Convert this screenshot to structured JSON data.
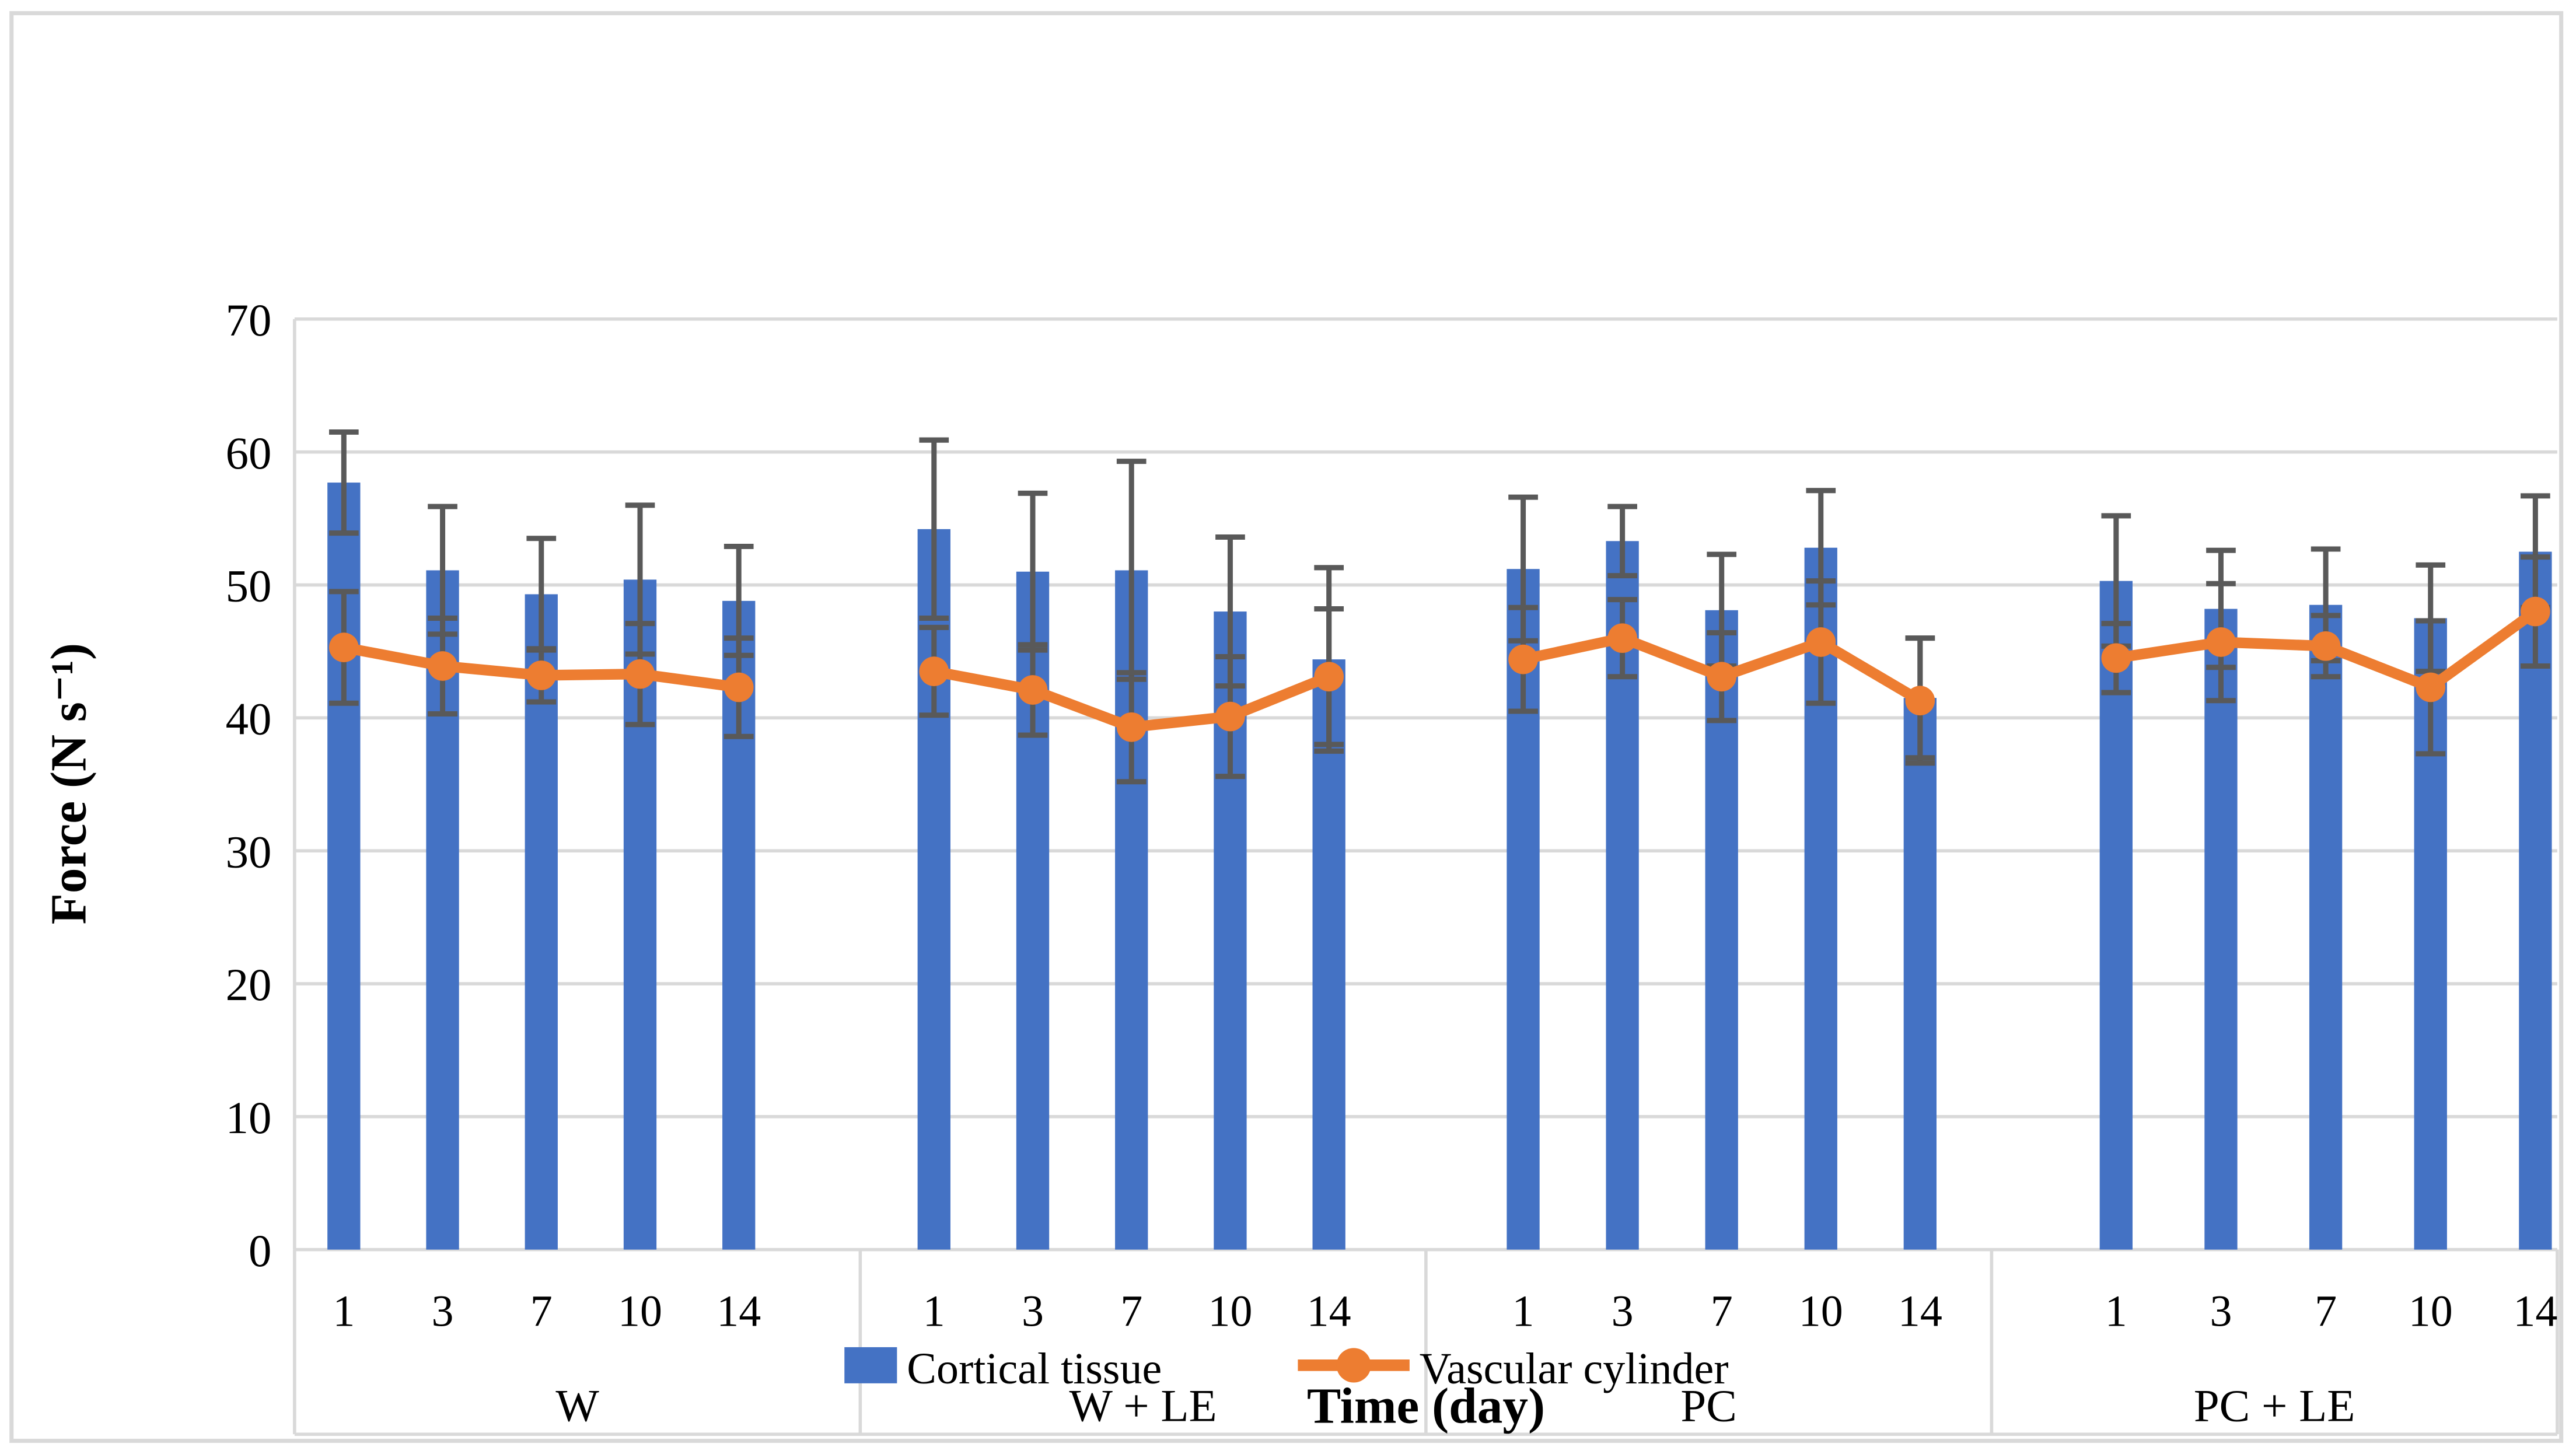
{
  "figure": {
    "background": "#FFFFFF",
    "border_color": "#D9D9D9"
  },
  "chart_data": {
    "type": "bar",
    "subtype": "grouped bars with overlaid line series and error bars",
    "title": "",
    "xlabel": "Time (day)",
    "ylabel": "Force (N s⁻¹)",
    "ylim": [
      0,
      70
    ],
    "yticks": [
      0,
      10,
      20,
      30,
      40,
      50,
      60,
      70
    ],
    "grid": "horizontal",
    "legend_position": "bottom-center",
    "days": [
      "1",
      "3",
      "7",
      "10",
      "14"
    ],
    "legend": [
      {
        "label": "Cortical tissue",
        "type": "bar",
        "color": "#4472C4"
      },
      {
        "label": "Vascular cylinder",
        "type": "line-marker",
        "color": "#ED7D31"
      }
    ],
    "colors": {
      "bar": "#4472C4",
      "line": "#ED7D31",
      "error_bar": "#595959",
      "grid": "#D9D9D9",
      "text": "#000000"
    },
    "groups": [
      {
        "label": "W",
        "cortical_tissue": [
          57.7,
          51.1,
          49.3,
          50.4,
          48.8
        ],
        "cortical_err": [
          3.8,
          4.8,
          4.2,
          5.6,
          4.1
        ],
        "vascular_cylinder": [
          45.3,
          43.9,
          43.2,
          43.3,
          42.3
        ],
        "vascular_err": [
          4.2,
          3.6,
          2.0,
          3.8,
          3.7
        ]
      },
      {
        "label": "W + LE",
        "cortical_tissue": [
          54.2,
          51.0,
          51.1,
          48.0,
          44.4
        ],
        "cortical_err": [
          6.7,
          5.9,
          8.2,
          5.6,
          6.9
        ],
        "vascular_cylinder": [
          43.5,
          42.1,
          39.3,
          40.1,
          43.1
        ],
        "vascular_err": [
          3.3,
          3.4,
          4.1,
          4.5,
          5.1
        ]
      },
      {
        "label": "PC",
        "cortical_tissue": [
          51.2,
          53.3,
          48.1,
          52.8,
          41.5
        ],
        "cortical_err": [
          5.4,
          2.6,
          4.2,
          4.3,
          4.5
        ],
        "vascular_cylinder": [
          44.4,
          46.0,
          43.1,
          45.7,
          41.3
        ],
        "vascular_err": [
          3.9,
          2.9,
          3.3,
          4.6,
          4.7
        ]
      },
      {
        "label": "PC + LE",
        "cortical_tissue": [
          50.3,
          48.2,
          48.5,
          47.5,
          52.5
        ],
        "cortical_err": [
          4.9,
          4.4,
          4.2,
          4.0,
          4.2
        ],
        "vascular_cylinder": [
          44.5,
          45.7,
          45.4,
          42.3,
          48.0
        ],
        "vascular_err": [
          2.6,
          4.4,
          2.3,
          5.0,
          4.1
        ]
      }
    ]
  }
}
